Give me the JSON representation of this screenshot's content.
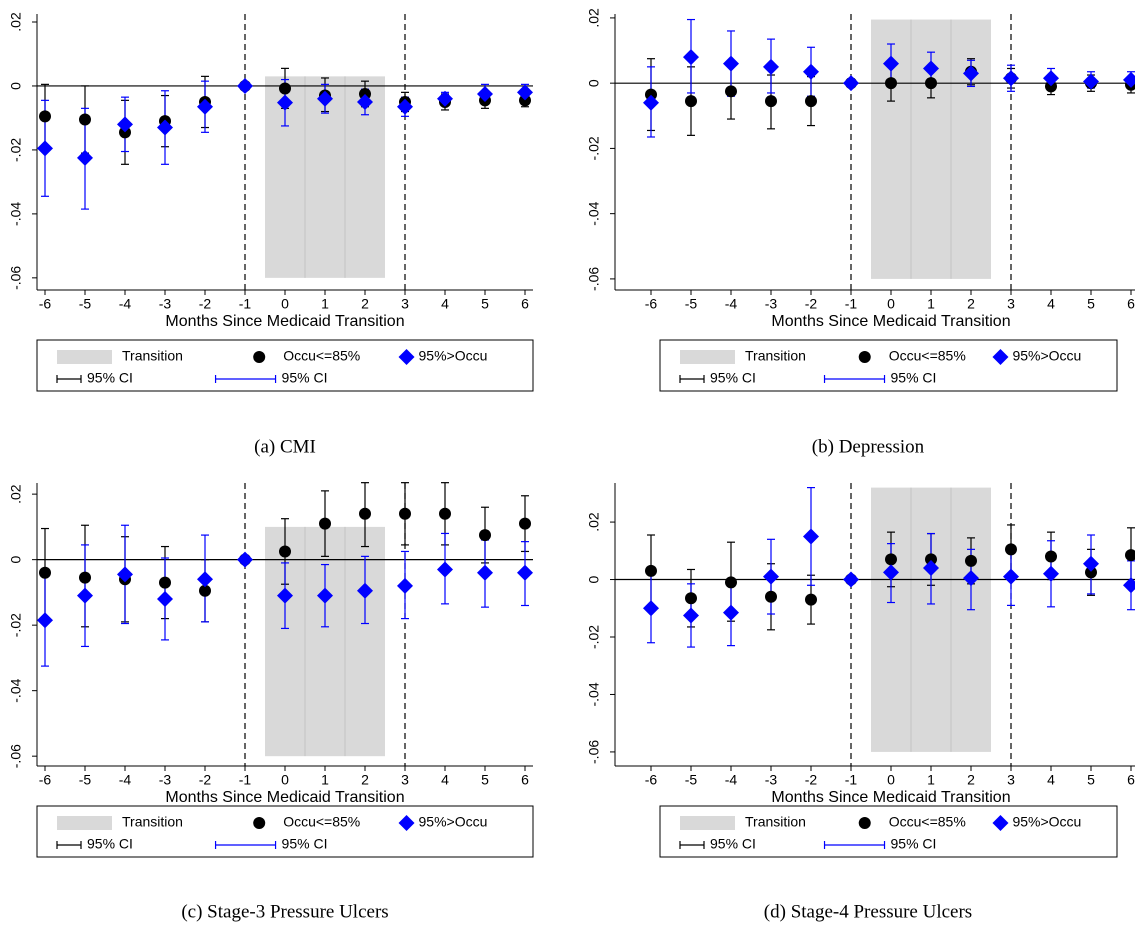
{
  "chart_data": [
    {
      "type": "errorbar",
      "caption": "(a) CMI",
      "xlabel": "Months Since Medicaid Transition",
      "x": [
        -6,
        -5,
        -4,
        -3,
        -2,
        -1,
        0,
        1,
        2,
        3,
        4,
        5,
        6
      ],
      "xticks": [
        -6,
        -5,
        -4,
        -3,
        -2,
        -1,
        0,
        1,
        2,
        3,
        4,
        5,
        6
      ],
      "xlim": [
        -6.2,
        6.2
      ],
      "ylim": [
        -0.0638,
        0.0225
      ],
      "yticks": [
        {
          "value": 0.02,
          "label": ".02"
        },
        0,
        {
          "value": -0.02,
          "label": "-.02"
        },
        {
          "value": -0.04,
          "label": "-.04"
        },
        {
          "value": -0.06,
          "label": "-.06"
        }
      ],
      "hline": 0,
      "vlines": [
        -1,
        3
      ],
      "shade": {
        "name": "Transition",
        "color": "#d9d9d9",
        "xlim": [
          -0.5,
          2.5
        ],
        "ylim": [
          -0.06,
          0.003
        ]
      },
      "series": [
        {
          "name": "Occu<=85%",
          "ci_name": "95% CI",
          "color": "#000000",
          "marker": "circle",
          "values": [
            -0.0095,
            -0.0105,
            -0.0145,
            -0.011,
            -0.005,
            0,
            -0.0008,
            -0.003,
            -0.0025,
            -0.005,
            -0.005,
            -0.0045,
            -0.0045
          ],
          "lower": [
            -0.019,
            -0.021,
            -0.0245,
            -0.019,
            -0.013,
            null,
            -0.007,
            -0.008,
            -0.0065,
            -0.008,
            -0.0075,
            -0.007,
            -0.0065
          ],
          "upper": [
            0.0005,
            0.0,
            -0.0045,
            -0.003,
            0.003,
            null,
            0.0055,
            0.0025,
            0.0015,
            -0.002,
            -0.0025,
            -0.002,
            -0.0025
          ]
        },
        {
          "name": "95%>Occu",
          "ci_name": "95% CI",
          "color": "#0000ff",
          "marker": "diamond",
          "values": [
            -0.0195,
            -0.0225,
            -0.012,
            -0.013,
            -0.0065,
            0,
            -0.0052,
            -0.004,
            -0.005,
            -0.0065,
            -0.004,
            -0.0025,
            -0.002
          ],
          "lower": [
            -0.0345,
            -0.0385,
            -0.0205,
            -0.0245,
            -0.0145,
            null,
            -0.0125,
            -0.0085,
            -0.009,
            -0.0095,
            -0.006,
            -0.005,
            -0.0045
          ],
          "upper": [
            -0.0045,
            -0.007,
            -0.0035,
            -0.0015,
            0.0015,
            null,
            0.002,
            0.0005,
            -0.001,
            -0.0035,
            -0.002,
            0.0005,
            0.0005
          ]
        }
      ]
    },
    {
      "type": "errorbar",
      "caption": "(b) Depression",
      "xlabel": "Months Since Medicaid Transition",
      "x": [
        -6,
        -5,
        -4,
        -3,
        -2,
        -1,
        0,
        1,
        2,
        3,
        4,
        5,
        6
      ],
      "xticks": [
        -6,
        -5,
        -4,
        -3,
        -2,
        -1,
        0,
        1,
        2,
        3,
        4,
        5,
        6
      ],
      "xlim": [
        -6.9,
        6.9
      ],
      "ylim": [
        -0.0634,
        0.0212
      ],
      "yticks": [
        {
          "value": 0.02,
          "label": ".02"
        },
        0,
        {
          "value": -0.02,
          "label": "-.02"
        },
        {
          "value": -0.04,
          "label": "-.04"
        },
        {
          "value": -0.06,
          "label": "-.06"
        }
      ],
      "hline": 0,
      "vlines": [
        -1,
        3
      ],
      "shade": {
        "name": "Transition",
        "color": "#d9d9d9",
        "xlim": [
          -0.5,
          2.5
        ],
        "ylim": [
          -0.06,
          0.0195
        ]
      },
      "series": [
        {
          "name": "Occu<=85%",
          "ci_name": "95% CI",
          "color": "#000000",
          "marker": "circle",
          "values": [
            -0.0035,
            -0.0055,
            -0.0025,
            -0.0055,
            -0.0055,
            0,
            0.0,
            0.0,
            0.0035,
            0.0015,
            -0.001,
            0.0,
            -0.0005
          ],
          "lower": [
            -0.0145,
            -0.016,
            -0.011,
            -0.014,
            -0.013,
            null,
            -0.0055,
            -0.0045,
            -0.0005,
            -0.0015,
            -0.0035,
            -0.0025,
            -0.003
          ],
          "upper": [
            0.0075,
            0.005,
            0.006,
            0.0025,
            0.002,
            null,
            0.0055,
            0.0045,
            0.0075,
            0.0045,
            0.0015,
            0.0025,
            0.002
          ]
        },
        {
          "name": "95%>Occu",
          "ci_name": "95% CI",
          "color": "#0000ff",
          "marker": "diamond",
          "values": [
            -0.006,
            0.008,
            0.006,
            0.005,
            0.0035,
            0,
            0.006,
            0.0045,
            0.003,
            0.0015,
            0.0015,
            0.0005,
            0.001
          ],
          "lower": [
            -0.0165,
            -0.003,
            -0.004,
            -0.003,
            -0.004,
            null,
            0.0,
            0.0,
            -0.001,
            -0.0025,
            -0.001,
            -0.0015,
            -0.0015
          ],
          "upper": [
            0.005,
            0.0195,
            0.016,
            0.0135,
            0.011,
            null,
            0.012,
            0.0095,
            0.007,
            0.0055,
            0.0045,
            0.0035,
            0.0035
          ]
        }
      ]
    },
    {
      "type": "errorbar",
      "caption": "(c) Stage-3 Pressure Ulcers",
      "xlabel": "Months Since Medicaid Transition",
      "x": [
        -6,
        -5,
        -4,
        -3,
        -2,
        -1,
        0,
        1,
        2,
        3,
        4,
        5,
        6
      ],
      "xticks": [
        -6,
        -5,
        -4,
        -3,
        -2,
        -1,
        0,
        1,
        2,
        3,
        4,
        5,
        6
      ],
      "xlim": [
        -6.2,
        6.2
      ],
      "ylim": [
        -0.063,
        0.0234
      ],
      "yticks": [
        {
          "value": 0.02,
          "label": ".02"
        },
        0,
        {
          "value": -0.02,
          "label": "-.02"
        },
        {
          "value": -0.04,
          "label": "-.04"
        },
        {
          "value": -0.06,
          "label": "-.06"
        }
      ],
      "hline": 0,
      "vlines": [
        -1,
        3
      ],
      "shade": {
        "name": "Transition",
        "color": "#d9d9d9",
        "xlim": [
          -0.5,
          2.5
        ],
        "ylim": [
          -0.06,
          0.01
        ]
      },
      "series": [
        {
          "name": "Occu<=85%",
          "ci_name": "95% CI",
          "color": "#000000",
          "marker": "circle",
          "values": [
            -0.004,
            -0.0055,
            -0.006,
            -0.007,
            -0.0095,
            0,
            0.0025,
            0.011,
            0.014,
            0.014,
            0.014,
            0.0075,
            0.011
          ],
          "lower": [
            -0.0175,
            -0.0205,
            -0.019,
            -0.018,
            -0.019,
            null,
            -0.0075,
            0.001,
            0.004,
            0.0045,
            0.0045,
            -0.001,
            0.0025
          ],
          "upper": [
            0.0095,
            0.0105,
            0.007,
            0.004,
            0.0,
            null,
            0.0125,
            0.021,
            0.0235,
            0.0235,
            0.0235,
            0.016,
            0.0195
          ]
        },
        {
          "name": "95%>Occu",
          "ci_name": "95% CI",
          "color": "#0000ff",
          "marker": "diamond",
          "values": [
            -0.0185,
            -0.011,
            -0.0045,
            -0.012,
            -0.006,
            0,
            -0.011,
            -0.011,
            -0.0095,
            -0.008,
            -0.003,
            -0.004,
            -0.004
          ],
          "lower": [
            -0.0325,
            -0.0265,
            -0.0195,
            -0.0245,
            -0.019,
            null,
            -0.021,
            -0.0205,
            -0.0195,
            -0.018,
            -0.0135,
            -0.0145,
            -0.014
          ],
          "upper": [
            -0.0045,
            0.0045,
            0.0105,
            0.0005,
            0.0075,
            null,
            -0.001,
            -0.0015,
            0.001,
            0.0025,
            0.008,
            0.006,
            0.0055
          ]
        }
      ]
    },
    {
      "type": "errorbar",
      "caption": "(d) Stage-4 Pressure Ulcers",
      "xlabel": "Months Since Medicaid Transition",
      "x": [
        -6,
        -5,
        -4,
        -3,
        -2,
        -1,
        0,
        1,
        2,
        3,
        4,
        5,
        6
      ],
      "xticks": [
        -6,
        -5,
        -4,
        -3,
        -2,
        -1,
        0,
        1,
        2,
        3,
        4,
        5,
        6
      ],
      "xlim": [
        -6.9,
        6.9
      ],
      "ylim": [
        -0.0649,
        0.0336
      ],
      "yticks": [
        {
          "value": 0.02,
          "label": ".02"
        },
        0,
        {
          "value": -0.02,
          "label": "-.02"
        },
        {
          "value": -0.04,
          "label": "-.04"
        },
        {
          "value": -0.06,
          "label": "-.06"
        }
      ],
      "hline": 0,
      "vlines": [
        -1,
        3
      ],
      "shade": {
        "name": "Transition",
        "color": "#d9d9d9",
        "xlim": [
          -0.5,
          2.5
        ],
        "ylim": [
          -0.06,
          0.032
        ]
      },
      "series": [
        {
          "name": "Occu<=85%",
          "ci_name": "95% CI",
          "color": "#000000",
          "marker": "circle",
          "values": [
            0.003,
            -0.0065,
            -0.001,
            -0.006,
            -0.007,
            0,
            0.007,
            0.007,
            0.0065,
            0.0105,
            0.008,
            0.0025,
            0.0085
          ],
          "lower": [
            -0.0095,
            -0.0165,
            -0.0145,
            -0.0175,
            -0.0155,
            null,
            -0.0025,
            -0.002,
            -0.0015,
            0.002,
            0.0,
            -0.0055,
            -0.001
          ],
          "upper": [
            0.0155,
            0.0035,
            0.013,
            0.0055,
            0.0015,
            null,
            0.0165,
            0.016,
            0.0145,
            0.019,
            0.0165,
            0.0105,
            0.018
          ]
        },
        {
          "name": "95%>Occu",
          "ci_name": "95% CI",
          "color": "#0000ff",
          "marker": "diamond",
          "values": [
            -0.01,
            -0.0125,
            -0.0115,
            0.001,
            0.015,
            0,
            0.0025,
            0.004,
            0.0005,
            0.001,
            0.002,
            0.0055,
            -0.002
          ],
          "lower": [
            -0.022,
            -0.0235,
            -0.023,
            -0.012,
            -0.002,
            null,
            -0.008,
            -0.0085,
            -0.0105,
            -0.009,
            -0.0095,
            -0.005,
            -0.0105
          ],
          "upper": [
            0.002,
            -0.0015,
            0.0,
            0.014,
            0.032,
            null,
            0.0125,
            0.016,
            0.0105,
            0.011,
            0.0135,
            0.0155,
            0.0065
          ]
        }
      ]
    }
  ]
}
